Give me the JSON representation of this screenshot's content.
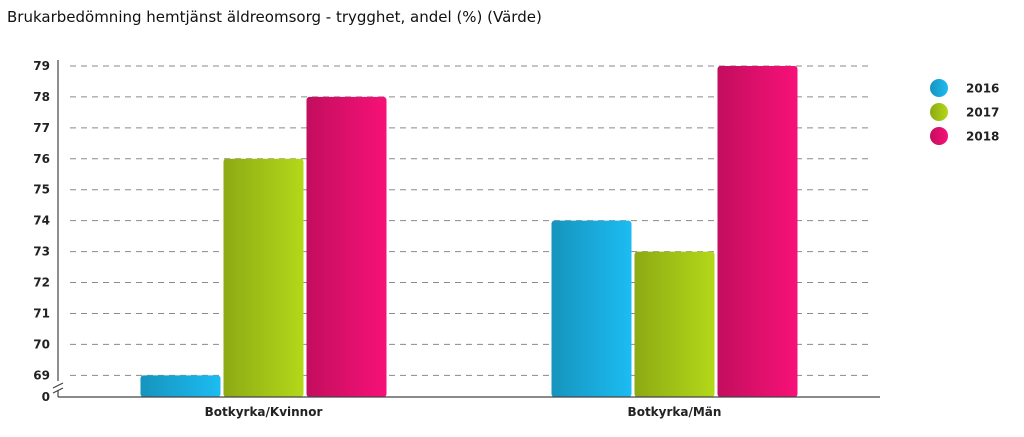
{
  "chart_data": {
    "type": "bar",
    "title": "Brukarbedömning hemtjänst äldreomsorg - trygghet, andel (%) (Värde)",
    "categories": [
      "Botkyrka/Kvinnor",
      "Botkyrka/Män"
    ],
    "series": [
      {
        "name": "2016",
        "color": "#1aaee0",
        "values": [
          69,
          74
        ]
      },
      {
        "name": "2017",
        "color": "#a6c817",
        "values": [
          76,
          73
        ]
      },
      {
        "name": "2018",
        "color": "#e5106f",
        "values": [
          78,
          79
        ]
      }
    ],
    "y_ticks": [
      0,
      69,
      70,
      71,
      72,
      73,
      74,
      75,
      76,
      77,
      78,
      79
    ],
    "ylim": [
      68.3,
      79
    ],
    "axis_break": true,
    "grid": true,
    "legend_position": "top-right"
  }
}
